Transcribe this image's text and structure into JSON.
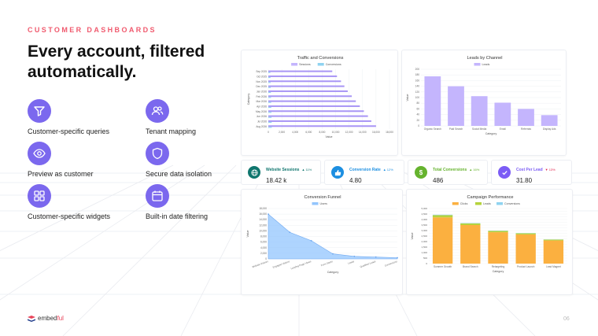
{
  "slide": {
    "eyebrow": "CUSTOMER DASHBOARDS",
    "title_line1": "Every account, filtered",
    "title_line2": "automatically.",
    "page_number": "06",
    "logo_text_1": "embed",
    "logo_text_2": "ful"
  },
  "features": [
    {
      "label": "Customer-specific queries",
      "icon": "funnel-icon"
    },
    {
      "label": "Tenant mapping",
      "icon": "users-icon"
    },
    {
      "label": "Preview as customer",
      "icon": "eye-icon"
    },
    {
      "label": "Secure data isolation",
      "icon": "shield-icon"
    },
    {
      "label": "Customer-specific widgets",
      "icon": "grid-icon"
    },
    {
      "label": "Built-in date filtering",
      "icon": "calendar-icon"
    }
  ],
  "colors": {
    "accent": "#7b68ee",
    "eyebrow": "#f05a6e",
    "purple_bar": "#c4b5fd",
    "blue_area": "#93c5fd",
    "orange": "#fbb040",
    "green": "#b5d33d",
    "cyan": "#8fd3f0"
  },
  "kpis": [
    {
      "label": "Website Sessions",
      "delta": "▲ 11%",
      "value": "18.42 k",
      "color": "#0f766e",
      "icon": "globe-icon"
    },
    {
      "label": "Conversion Rate",
      "delta": "▲ 12%",
      "value": "4.80",
      "color": "#1d8fe1",
      "icon": "thumbs-up-icon"
    },
    {
      "label": "Total Conversions",
      "delta": "▲ 16%",
      "value": "486",
      "color": "#65b32e",
      "icon": "dollar-icon"
    },
    {
      "label": "Cost Per Lead",
      "delta": "▼ 13%",
      "value": "31.80",
      "color": "#7b5cf5",
      "icon": "check-circle-icon"
    }
  ],
  "chart_data": [
    {
      "type": "bar",
      "orientation": "horizontal",
      "title": "Traffic and Conversions",
      "legend": [
        "Sessions",
        "Conversions"
      ],
      "xlabel": "Value",
      "ylabel": "Category",
      "categories": [
        "Sep 2025",
        "Oct 2025",
        "Nov 2025",
        "Dec 2025",
        "Jan 2026",
        "Feb 2026",
        "Mar 2026",
        "Apr 2026",
        "May 2026",
        "Jun 2026",
        "Jul 2026",
        "Aug 2026"
      ],
      "series": [
        {
          "name": "Sessions",
          "values": [
            9500,
            10200,
            10800,
            11300,
            11800,
            12400,
            13000,
            13600,
            14200,
            14800,
            15300,
            16000
          ]
        },
        {
          "name": "Conversions",
          "values": [
            300,
            320,
            340,
            360,
            380,
            400,
            420,
            440,
            460,
            480,
            500,
            520
          ]
        }
      ],
      "xticks": [
        "0",
        "2,000",
        "4,000",
        "6,000",
        "8,000",
        "10,000",
        "12,000",
        "14,000",
        "16,000",
        "18,000"
      ],
      "xlim": [
        0,
        18000
      ],
      "legend_position": "top"
    },
    {
      "type": "bar",
      "title": "Leads by Channel",
      "legend": [
        "Leads"
      ],
      "xlabel": "Category",
      "ylabel": "Value",
      "categories": [
        "Organic Search",
        "Paid Search",
        "Social Media",
        "Email",
        "Referrals",
        "Display Ads"
      ],
      "values": [
        175,
        140,
        105,
        82,
        60,
        38
      ],
      "yticks": [
        "0",
        "20",
        "40",
        "60",
        "80",
        "100",
        "120",
        "140",
        "160",
        "180",
        "200"
      ],
      "ylim": [
        0,
        200
      ],
      "legend_position": "top"
    },
    {
      "type": "area",
      "title": "Conversion Funnel",
      "legend": [
        "Users"
      ],
      "xlabel": "Category",
      "ylabel": "Value",
      "categories": [
        "Website Visitors",
        "Engaged Visitors",
        "Landing Page Views",
        "Form Starts",
        "Leads",
        "Qualified Leads",
        "Conversions"
      ],
      "values": [
        16000,
        9500,
        6500,
        1800,
        900,
        650,
        420
      ],
      "yticks": [
        "0",
        "2,000",
        "4,000",
        "6,000",
        "8,000",
        "10,000",
        "12,000",
        "14,000",
        "16,000",
        "18,000"
      ],
      "ylim": [
        0,
        18000
      ],
      "legend_position": "top"
    },
    {
      "type": "bar",
      "stacked": true,
      "title": "Campaign Performance",
      "legend": [
        "Clicks",
        "Leads",
        "Conversions"
      ],
      "xlabel": "Category",
      "ylabel": "Value",
      "categories": [
        "Summer Growth",
        "Brand Search",
        "Retargeting",
        "Product Launch",
        "Lead Magnet"
      ],
      "series": [
        {
          "name": "Clicks",
          "values": [
            4200,
            3500,
            2850,
            2650,
            2100
          ]
        },
        {
          "name": "Leads",
          "values": [
            200,
            150,
            120,
            100,
            80
          ]
        },
        {
          "name": "Conversions",
          "values": [
            40,
            30,
            25,
            20,
            15
          ]
        }
      ],
      "yticks": [
        "0",
        "250",
        "500",
        "750",
        "1,000",
        "1,250",
        "1,500",
        "1,750",
        "2,000",
        "2,250",
        "2,500",
        "2,750",
        "3,000",
        "3,250",
        "3,500",
        "3,750",
        "4,000",
        "4,250",
        "4,500",
        "4,750",
        "5,000"
      ],
      "ylim": [
        0,
        5000
      ],
      "legend_position": "top"
    }
  ]
}
